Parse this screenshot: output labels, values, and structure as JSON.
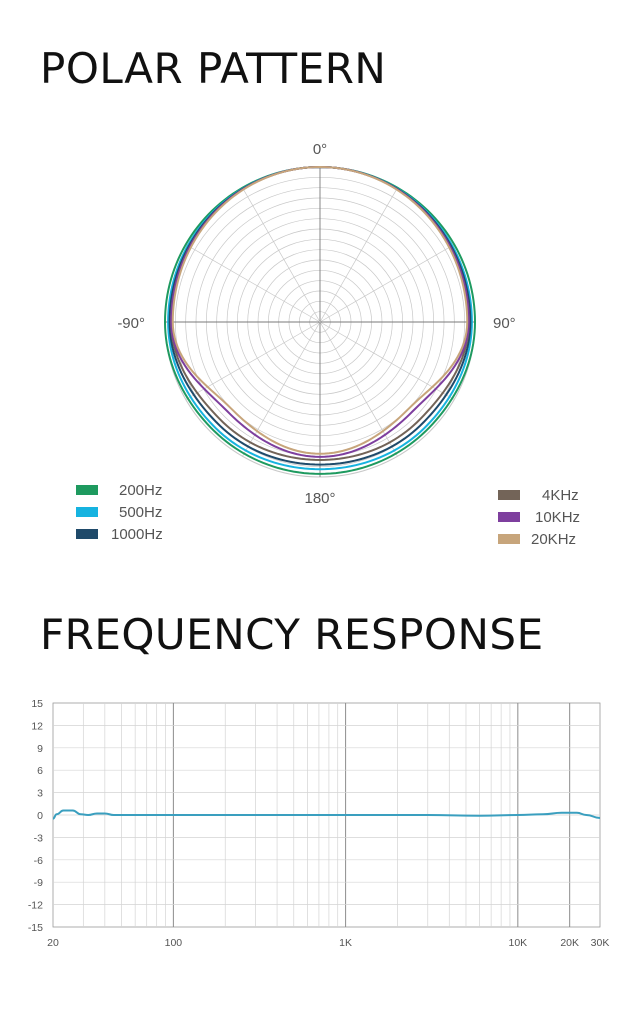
{
  "titles": {
    "polar": "POLAR PATTERN",
    "frequency": "FREQUENCY RESPONSE"
  },
  "colors": {
    "200Hz": "#1e9a5f",
    "500Hz": "#16b3e0",
    "1000Hz": "#1f4a6a",
    "4KHz": "#736458",
    "10KHz": "#7e3f9e",
    "20KHz": "#c7a57b",
    "freq_line": "#3a9fbf",
    "grid": "#c8c8c8"
  },
  "chart_data": [
    {
      "type": "polar",
      "angle_labels": [
        "0°",
        "90°",
        "180°",
        "-90°"
      ],
      "series": [
        {
          "name": "200Hz",
          "values": [
            {
              "deg": 0,
              "r": 1.0
            },
            {
              "deg": 90,
              "r": 1.0
            },
            {
              "deg": 135,
              "r": 0.98
            },
            {
              "deg": 180,
              "r": 0.98
            }
          ]
        },
        {
          "name": "500Hz",
          "values": [
            {
              "deg": 0,
              "r": 1.0
            },
            {
              "deg": 90,
              "r": 0.98
            },
            {
              "deg": 135,
              "r": 0.96
            },
            {
              "deg": 180,
              "r": 0.95
            }
          ]
        },
        {
          "name": "1000Hz",
          "values": [
            {
              "deg": 0,
              "r": 1.0
            },
            {
              "deg": 90,
              "r": 0.97
            },
            {
              "deg": 135,
              "r": 0.93
            },
            {
              "deg": 180,
              "r": 0.92
            }
          ]
        },
        {
          "name": "4KHz",
          "values": [
            {
              "deg": 0,
              "r": 1.0
            },
            {
              "deg": 90,
              "r": 0.96
            },
            {
              "deg": 135,
              "r": 0.9
            },
            {
              "deg": 180,
              "r": 0.89
            }
          ]
        },
        {
          "name": "10KHz",
          "values": [
            {
              "deg": 0,
              "r": 1.0
            },
            {
              "deg": 90,
              "r": 0.96
            },
            {
              "deg": 135,
              "r": 0.83
            },
            {
              "deg": 180,
              "r": 0.87
            }
          ]
        },
        {
          "name": "20KHz",
          "values": [
            {
              "deg": 0,
              "r": 1.0
            },
            {
              "deg": 90,
              "r": 0.95
            },
            {
              "deg": 135,
              "r": 0.8
            },
            {
              "deg": 180,
              "r": 0.85
            }
          ]
        }
      ],
      "legend": {
        "left": [
          "200Hz",
          "500Hz",
          "1000Hz"
        ],
        "right": [
          "4KHz",
          "10KHz",
          "20KHz"
        ]
      },
      "grid": true
    },
    {
      "type": "line",
      "xscale": "log",
      "xlim": [
        20,
        30000
      ],
      "ylim": [
        -15,
        15
      ],
      "x_ticks": [
        {
          "value": 20,
          "label": "20"
        },
        {
          "value": 100,
          "label": "100"
        },
        {
          "value": 1000,
          "label": "1K"
        },
        {
          "value": 10000,
          "label": "10K"
        },
        {
          "value": 20000,
          "label": "20K"
        },
        {
          "value": 30000,
          "label": "30K"
        }
      ],
      "y_ticks": [
        {
          "value": 15,
          "label": "15"
        },
        {
          "value": 12,
          "label": "12"
        },
        {
          "value": 9,
          "label": "9"
        },
        {
          "value": 6,
          "label": "6"
        },
        {
          "value": 3,
          "label": "3"
        },
        {
          "value": 0,
          "label": "0"
        },
        {
          "value": -3,
          "label": "-3"
        },
        {
          "value": -6,
          "label": "-6"
        },
        {
          "value": -9,
          "label": "-9"
        },
        {
          "value": -12,
          "label": "-12"
        },
        {
          "value": -15,
          "label": "-15"
        }
      ],
      "series": [
        {
          "points": [
            [
              20,
              -0.5
            ],
            [
              21,
              0.1
            ],
            [
              23,
              0.6
            ],
            [
              26,
              0.6
            ],
            [
              29,
              0.1
            ],
            [
              32,
              0.0
            ],
            [
              36,
              0.2
            ],
            [
              40,
              0.2
            ],
            [
              45,
              0.0
            ],
            [
              60,
              0.0
            ],
            [
              100,
              0.0
            ],
            [
              300,
              0.0
            ],
            [
              1000,
              0.0
            ],
            [
              3000,
              0.0
            ],
            [
              6000,
              -0.1
            ],
            [
              10000,
              0.0
            ],
            [
              14000,
              0.1
            ],
            [
              18000,
              0.3
            ],
            [
              22000,
              0.3
            ],
            [
              25000,
              0.0
            ],
            [
              30000,
              -0.4
            ]
          ]
        }
      ],
      "grid": true
    }
  ]
}
